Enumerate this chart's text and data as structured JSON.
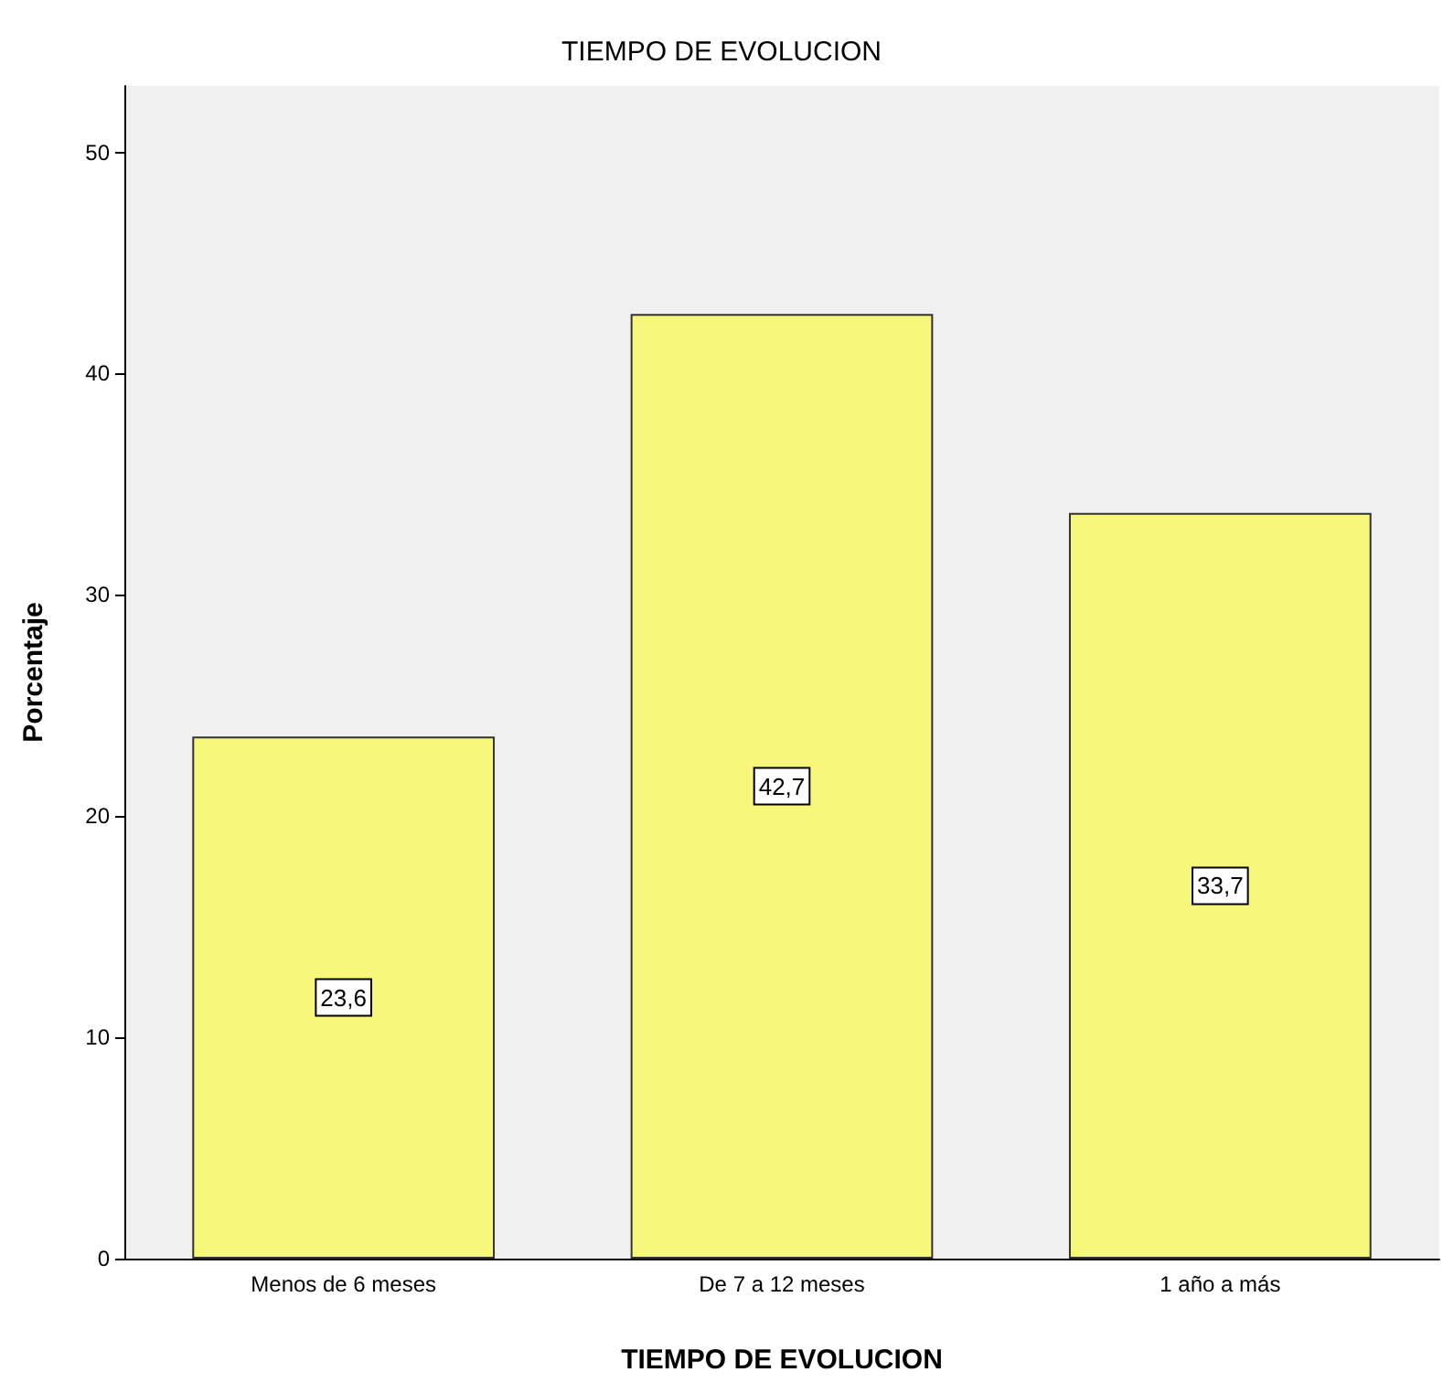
{
  "chart_data": {
    "type": "bar",
    "title": "TIEMPO DE EVOLUCION",
    "xlabel": "TIEMPO DE EVOLUCION",
    "ylabel": "Porcentaje",
    "categories": [
      "Menos de 6 meses",
      "De 7 a 12 meses",
      "1 año a más"
    ],
    "values": [
      23.6,
      42.7,
      33.7
    ],
    "value_labels": [
      "23,6",
      "42,7",
      "33,7"
    ],
    "color": "#f7f77b",
    "ylim": [
      0,
      53
    ],
    "yticks": [
      0,
      10,
      20,
      30,
      40,
      50
    ],
    "grid": false
  }
}
